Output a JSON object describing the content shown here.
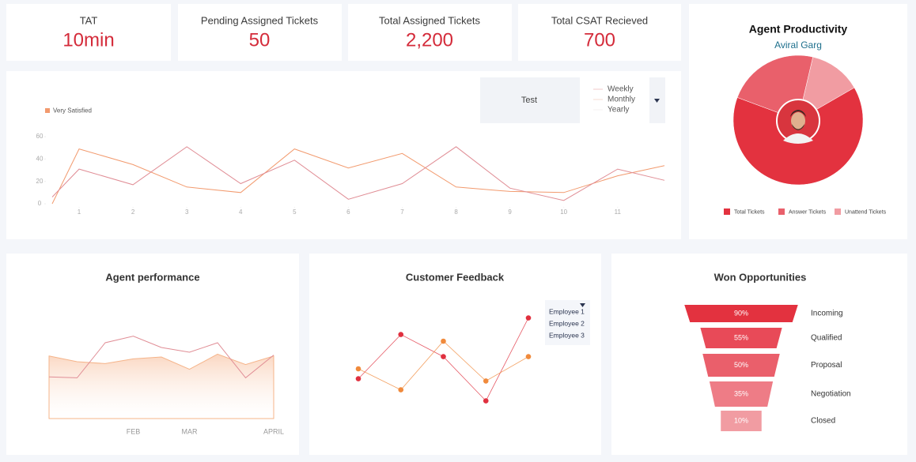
{
  "kpis": [
    {
      "label": "TAT",
      "value": "10min"
    },
    {
      "label": "Pending Assigned Tickets",
      "value": "50"
    },
    {
      "label": "Total Assigned Tickets",
      "value": "2,200"
    },
    {
      "label": "Total CSAT Recieved",
      "value": "700"
    }
  ],
  "chart_data": [
    {
      "type": "line",
      "x": [
        0.5,
        1,
        2,
        3,
        4,
        5,
        6,
        7,
        8,
        9,
        10,
        11,
        11.87
      ],
      "xlim": [
        0.5,
        11.87
      ],
      "xticks": [
        1,
        2,
        3,
        4,
        5,
        6,
        7,
        8,
        9,
        10,
        11
      ],
      "ylim": [
        0,
        60
      ],
      "yticks": [
        0,
        20,
        40,
        60
      ],
      "legend": "top-left",
      "series": [
        {
          "name": "Very Satisfied",
          "color": "#f29a6e",
          "values": [
            0,
            49,
            35,
            15,
            10,
            49,
            32,
            45,
            15,
            11,
            10,
            25,
            34
          ]
        },
        {
          "color": "#e08d95",
          "values": [
            6,
            31,
            17,
            51,
            18,
            39,
            4,
            18,
            51,
            14,
            3,
            31,
            21
          ]
        }
      ],
      "dropdown": {
        "selected": "Test",
        "options": [
          "Weekly",
          "Monthly",
          "Yearly"
        ]
      }
    },
    {
      "type": "pie",
      "title": "Agent Productivity",
      "subtitle": "Aviral Garg",
      "categories": [
        "Total Tickets",
        "Answer Tickets",
        "Unattend Tickets"
      ],
      "values": [
        64,
        23,
        13
      ],
      "colors": [
        "#e3323f",
        "#e9606b",
        "#f19ca2"
      ]
    },
    {
      "type": "area",
      "title": "Agent performance",
      "categories": [
        null,
        null,
        null,
        "FEB",
        null,
        "MAR",
        null,
        null,
        "APRIL"
      ],
      "ylim": [
        0,
        100
      ],
      "series": [
        {
          "type": "area",
          "color": "#f5b48a",
          "values": [
            66,
            60,
            58,
            63,
            65,
            52,
            68,
            57,
            66
          ]
        },
        {
          "type": "line",
          "color": "#e08d95",
          "values": [
            44,
            43,
            80,
            87,
            75,
            70,
            80,
            43,
            67
          ]
        }
      ]
    },
    {
      "type": "line",
      "title": "Customer Feedback",
      "markers": true,
      "categories": [
        null,
        null,
        null,
        null,
        null
      ],
      "ylim": [
        0,
        100
      ],
      "series": [
        {
          "color": "#e0303f",
          "values": [
            36,
            76,
            56,
            16,
            91
          ]
        },
        {
          "color": "#f08a3c",
          "values": [
            45,
            26,
            70,
            34,
            56
          ]
        }
      ],
      "dropdown": {
        "options": [
          "Employee 1",
          "Employee 2",
          "Employee 3"
        ]
      }
    },
    {
      "type": "funnel",
      "title": "Won Opportunities",
      "categories": [
        "Incoming",
        "Qualified",
        "Proposal",
        "Negotiation",
        "Closed"
      ],
      "values": [
        90,
        55,
        50,
        35,
        10
      ],
      "value_labels": [
        "90%",
        "55%",
        "50%",
        "35%",
        "10%"
      ],
      "colors": [
        "#e3323f",
        "#e84a58",
        "#ea5f6b",
        "#ee7c86",
        "#f19ca2"
      ]
    }
  ]
}
